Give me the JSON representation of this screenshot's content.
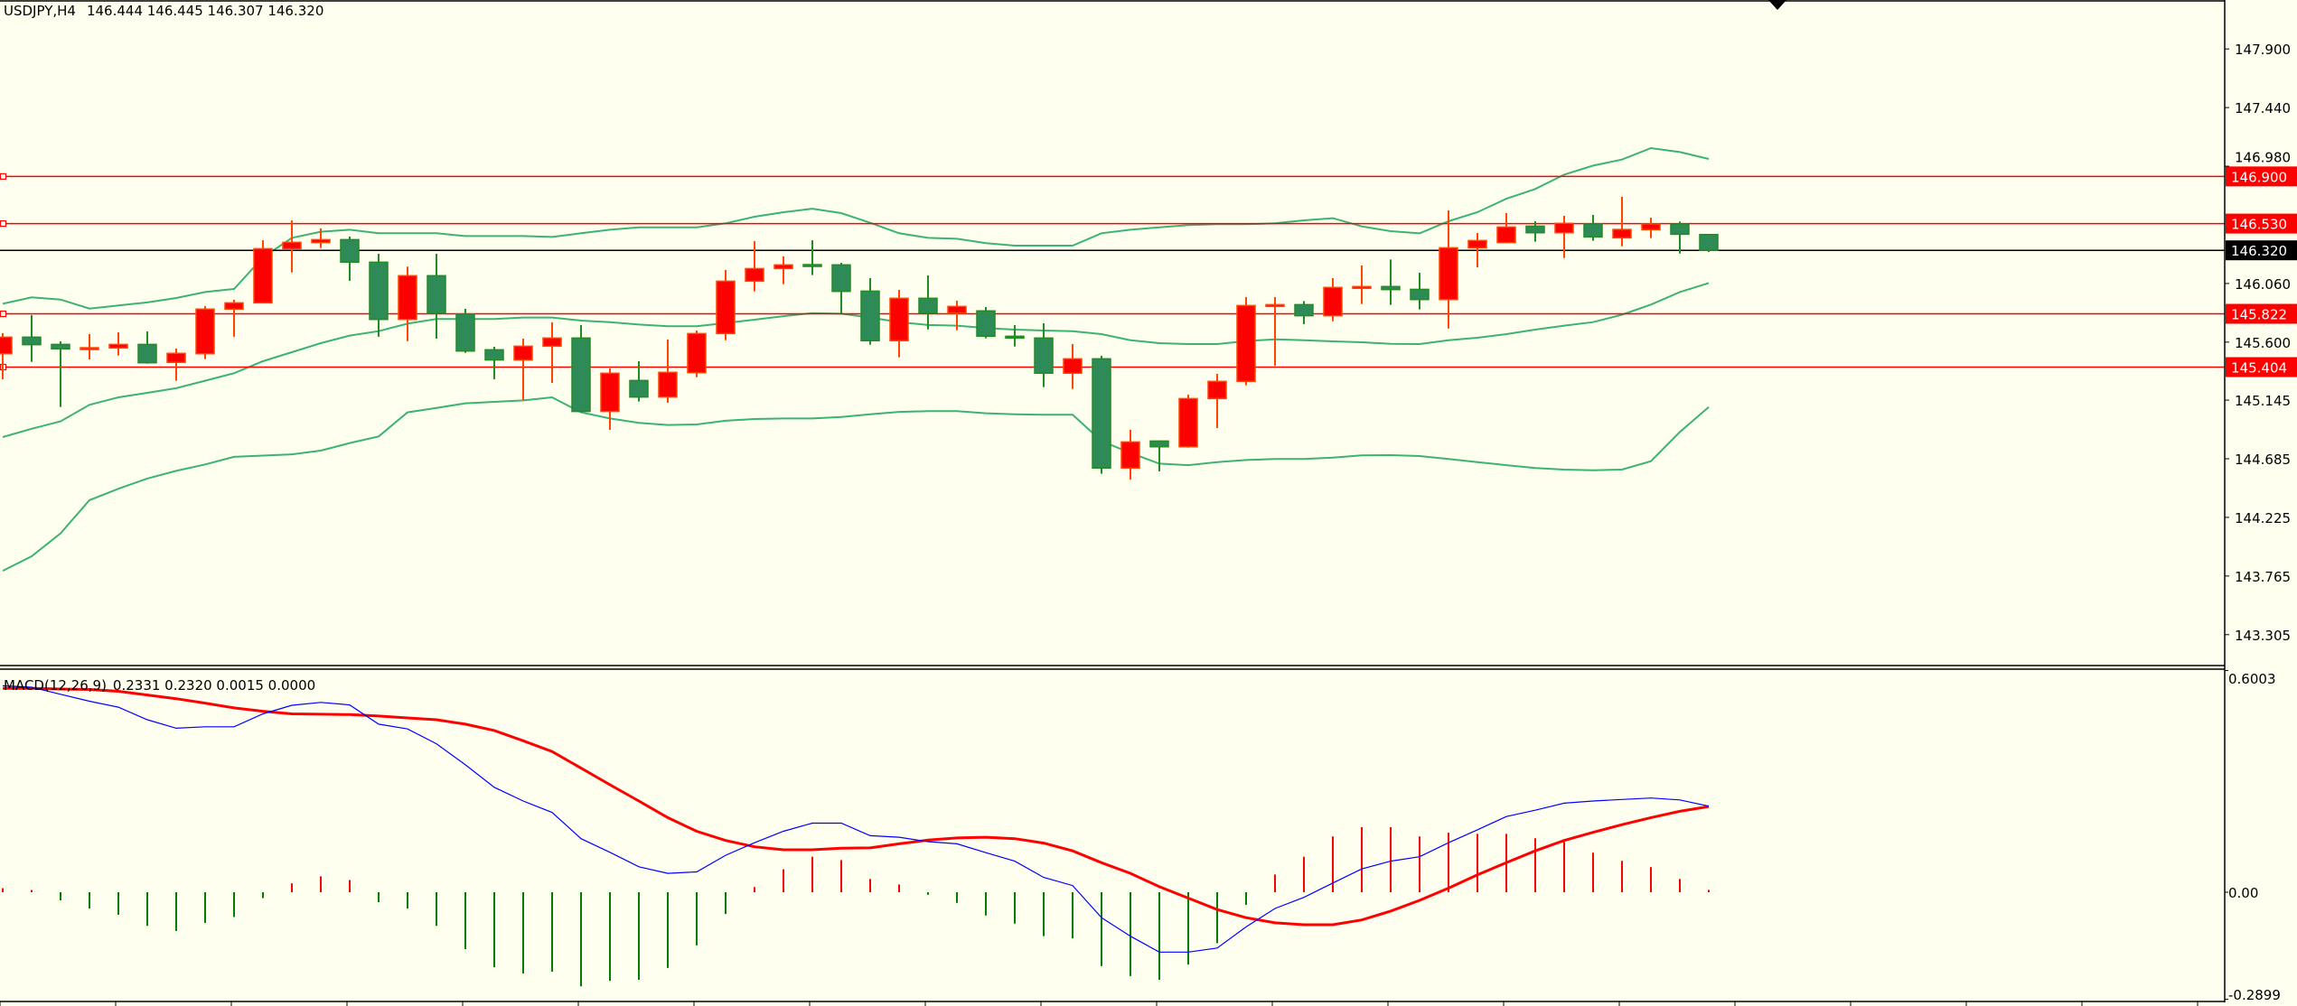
{
  "header": {
    "symbol_timeframe": "USDJPY,H4",
    "ohlc_text": "146.444 146.445 146.307 146.320"
  },
  "macd_header": {
    "title": "MACD(12,26,9)",
    "values_text": "0.2331 0.2320 0.0015 0.0000"
  },
  "colors": {
    "background": "#fffff0",
    "bull_body": "#ff0000",
    "bull_wick": "#ff4500",
    "bear_body": "#2e8b57",
    "bear_wick": "#228b22",
    "bands": "#3cb371",
    "level_line": "#ff0000",
    "current_price_line": "#000000",
    "macd_main": "#0000ff",
    "macd_signal": "#ff0000",
    "hist_pos": "#ff0000",
    "hist_neg": "#008000"
  },
  "chart_data": [
    {
      "type": "candlestick",
      "symbol": "USDJPY",
      "timeframe": "H4",
      "ylim": [
        143.1,
        148.0
      ],
      "price_axis_ticks": [
        "147.900",
        "147.440",
        "146.980",
        "146.060",
        "145.600",
        "145.145",
        "144.685",
        "144.225",
        "143.765",
        "143.305"
      ],
      "horizontal_levels": [
        {
          "value": 146.9,
          "label": "146.900",
          "color": "#ff0000"
        },
        {
          "value": 146.53,
          "label": "146.530",
          "color": "#ff0000"
        },
        {
          "value": 145.822,
          "label": "145.822",
          "color": "#ff0000"
        },
        {
          "value": 145.404,
          "label": "145.404",
          "color": "#ff0000"
        }
      ],
      "current_price": {
        "value": 146.32,
        "label": "146.320"
      },
      "ohlc": [
        [
          145.509,
          145.67,
          145.309,
          145.639
        ],
        [
          145.639,
          145.812,
          145.445,
          145.58
        ],
        [
          145.582,
          145.606,
          145.091,
          145.547
        ],
        [
          145.547,
          145.663,
          145.464,
          145.556
        ],
        [
          145.554,
          145.677,
          145.495,
          145.582
        ],
        [
          145.582,
          145.684,
          145.431,
          145.438
        ],
        [
          145.441,
          145.549,
          145.297,
          145.512
        ],
        [
          145.509,
          145.882,
          145.467,
          145.859
        ],
        [
          145.859,
          145.932,
          145.642,
          145.908
        ],
        [
          145.908,
          146.399,
          145.908,
          146.333
        ],
        [
          146.333,
          146.555,
          146.147,
          146.383
        ],
        [
          146.381,
          146.492,
          146.338,
          146.404
        ],
        [
          146.404,
          146.428,
          146.081,
          146.227
        ],
        [
          146.227,
          146.293,
          145.642,
          145.778
        ],
        [
          145.778,
          146.192,
          145.608,
          146.121
        ],
        [
          146.121,
          146.293,
          145.627,
          145.826
        ],
        [
          145.821,
          145.861,
          145.516,
          145.53
        ],
        [
          145.54,
          145.564,
          145.309,
          145.46
        ],
        [
          145.46,
          145.627,
          145.143,
          145.568
        ],
        [
          145.568,
          145.755,
          145.28,
          145.632
        ],
        [
          145.632,
          145.734,
          145.049,
          145.056
        ],
        [
          145.056,
          145.393,
          144.912,
          145.356
        ],
        [
          145.299,
          145.45,
          145.134,
          145.169
        ],
        [
          145.169,
          145.62,
          145.124,
          145.363
        ],
        [
          145.36,
          145.691,
          145.325,
          145.667
        ],
        [
          145.667,
          146.166,
          145.615,
          146.078
        ],
        [
          146.078,
          146.392,
          145.998,
          146.177
        ],
        [
          146.177,
          146.272,
          146.055,
          146.206
        ],
        [
          146.208,
          146.399,
          146.126,
          146.206
        ],
        [
          146.206,
          146.222,
          145.826,
          145.998
        ],
        [
          146.0,
          146.102,
          145.58,
          145.611
        ],
        [
          145.611,
          146.01,
          145.481,
          145.944
        ],
        [
          145.944,
          146.123,
          145.7,
          145.828
        ],
        [
          145.828,
          145.925,
          145.693,
          145.88
        ],
        [
          145.845,
          145.875,
          145.63,
          145.646
        ],
        [
          145.646,
          145.734,
          145.566,
          145.632
        ],
        [
          145.632,
          145.748,
          145.247,
          145.356
        ],
        [
          145.356,
          145.585,
          145.233,
          145.469
        ],
        [
          145.469,
          145.493,
          144.567,
          144.612
        ],
        [
          144.612,
          144.912,
          144.522,
          144.817
        ],
        [
          144.824,
          144.824,
          144.586,
          144.779
        ],
        [
          144.779,
          145.188,
          144.772,
          145.157
        ],
        [
          145.157,
          145.351,
          144.926,
          145.292
        ],
        [
          145.292,
          145.953,
          145.261,
          145.887
        ],
        [
          145.887,
          145.953,
          145.415,
          145.894
        ],
        [
          145.894,
          145.922,
          145.741,
          145.807
        ],
        [
          145.807,
          146.102,
          145.764,
          146.029
        ],
        [
          146.029,
          146.201,
          145.899,
          146.036
        ],
        [
          146.036,
          146.248,
          145.892,
          146.012
        ],
        [
          146.014,
          146.144,
          145.856,
          145.934
        ],
        [
          145.934,
          146.633,
          145.707,
          146.34
        ],
        [
          146.34,
          146.456,
          146.187,
          146.397
        ],
        [
          146.381,
          146.612,
          146.381,
          146.503
        ],
        [
          146.51,
          146.548,
          146.388,
          146.458
        ],
        [
          146.458,
          146.591,
          146.26,
          146.532
        ],
        [
          146.529,
          146.598,
          146.395,
          146.425
        ],
        [
          146.418,
          146.74,
          146.352,
          146.484
        ],
        [
          146.482,
          146.576,
          146.416,
          146.527
        ],
        [
          146.527,
          146.546,
          146.295,
          146.446
        ],
        [
          146.444,
          146.445,
          146.307,
          146.32
        ]
      ],
      "bollinger": {
        "upper": [
          145.901,
          145.951,
          145.934,
          145.863,
          145.887,
          145.911,
          145.946,
          145.993,
          146.017,
          146.265,
          146.418,
          146.466,
          146.482,
          146.454,
          146.454,
          146.454,
          146.432,
          146.432,
          146.432,
          146.425,
          146.454,
          146.482,
          146.501,
          146.501,
          146.501,
          146.532,
          146.584,
          146.619,
          146.647,
          146.612,
          146.536,
          146.454,
          146.418,
          146.411,
          146.376,
          146.357,
          146.357,
          146.357,
          146.454,
          146.482,
          146.501,
          146.518,
          146.525,
          146.525,
          146.532,
          146.555,
          146.572,
          146.508,
          146.47,
          146.453,
          146.548,
          146.619,
          146.725,
          146.801,
          146.914,
          146.985,
          147.032,
          147.122,
          147.091,
          147.037
        ],
        "middle": [
          144.855,
          144.92,
          144.978,
          145.108,
          145.167,
          145.202,
          145.238,
          145.297,
          145.356,
          145.45,
          145.521,
          145.592,
          145.651,
          145.686,
          145.745,
          145.781,
          145.781,
          145.781,
          145.793,
          145.793,
          145.769,
          145.757,
          145.738,
          145.724,
          145.724,
          145.75,
          145.776,
          145.804,
          145.828,
          145.823,
          145.793,
          145.757,
          145.734,
          145.729,
          145.71,
          145.698,
          145.691,
          145.686,
          145.663,
          145.615,
          145.592,
          145.585,
          145.585,
          145.608,
          145.622,
          145.615,
          145.606,
          145.599,
          145.587,
          145.585,
          145.615,
          145.634,
          145.663,
          145.698,
          145.729,
          145.757,
          145.815,
          145.894,
          145.993,
          146.064
        ],
        "lower": [
          143.806,
          143.92,
          144.1,
          144.36,
          144.45,
          144.53,
          144.59,
          144.64,
          144.7,
          144.71,
          144.72,
          144.749,
          144.808,
          144.86,
          145.049,
          145.084,
          145.12,
          145.131,
          145.143,
          145.167,
          145.049,
          145.001,
          144.966,
          144.95,
          144.954,
          144.983,
          144.997,
          145.001,
          145.001,
          145.013,
          145.034,
          145.053,
          145.058,
          145.058,
          145.042,
          145.034,
          145.03,
          145.03,
          144.824,
          144.73,
          144.647,
          144.635,
          144.659,
          144.675,
          144.683,
          144.683,
          144.694,
          144.711,
          144.713,
          144.706,
          144.683,
          144.659,
          144.635,
          144.612,
          144.6,
          144.595,
          144.6,
          144.666,
          144.895,
          145.091
        ]
      }
    },
    {
      "type": "macd",
      "title": "MACD(12,26,9)",
      "ylim": [
        -0.2899,
        0.6003
      ],
      "axis_ticks": [
        "0.6003",
        "0.00",
        "-0.2899"
      ],
      "main": [
        0.559,
        0.555,
        0.536,
        0.517,
        0.501,
        0.467,
        0.444,
        0.448,
        0.448,
        0.483,
        0.506,
        0.514,
        0.507,
        0.455,
        0.442,
        0.402,
        0.345,
        0.284,
        0.247,
        0.216,
        0.145,
        0.108,
        0.069,
        0.051,
        0.055,
        0.1,
        0.134,
        0.165,
        0.187,
        0.187,
        0.153,
        0.149,
        0.137,
        0.131,
        0.107,
        0.084,
        0.04,
        0.018,
        -0.069,
        -0.119,
        -0.162,
        -0.162,
        -0.151,
        -0.094,
        -0.044,
        -0.014,
        0.025,
        0.063,
        0.084,
        0.096,
        0.134,
        0.169,
        0.205,
        0.222,
        0.241,
        0.247,
        0.251,
        0.255,
        0.25,
        0.2331
      ],
      "signal": [
        0.552,
        0.552,
        0.55,
        0.549,
        0.544,
        0.534,
        0.524,
        0.512,
        0.499,
        0.49,
        0.483,
        0.482,
        0.481,
        0.477,
        0.472,
        0.467,
        0.455,
        0.438,
        0.41,
        0.381,
        0.336,
        0.291,
        0.247,
        0.202,
        0.165,
        0.14,
        0.123,
        0.115,
        0.115,
        0.119,
        0.12,
        0.131,
        0.141,
        0.147,
        0.149,
        0.145,
        0.133,
        0.112,
        0.08,
        0.051,
        0.015,
        -0.016,
        -0.047,
        -0.069,
        -0.083,
        -0.088,
        -0.088,
        -0.075,
        -0.051,
        -0.022,
        0.011,
        0.047,
        0.08,
        0.112,
        0.14,
        0.162,
        0.183,
        0.202,
        0.219,
        0.232
      ],
      "histogram": [
        0.011,
        0.001,
        -0.022,
        -0.044,
        -0.061,
        -0.091,
        -0.105,
        -0.083,
        -0.067,
        -0.016,
        0.024,
        0.043,
        0.033,
        -0.027,
        -0.044,
        -0.091,
        -0.154,
        -0.203,
        -0.22,
        -0.215,
        -0.255,
        -0.24,
        -0.237,
        -0.205,
        -0.144,
        -0.059,
        0.014,
        0.062,
        0.096,
        0.087,
        0.036,
        0.021,
        -0.007,
        -0.029,
        -0.063,
        -0.085,
        -0.119,
        -0.125,
        -0.2,
        -0.227,
        -0.237,
        -0.196,
        -0.138,
        -0.034,
        0.048,
        0.096,
        0.151,
        0.176,
        0.176,
        0.151,
        0.161,
        0.158,
        0.158,
        0.146,
        0.136,
        0.107,
        0.085,
        0.068,
        0.036,
        0.0015
      ]
    }
  ]
}
